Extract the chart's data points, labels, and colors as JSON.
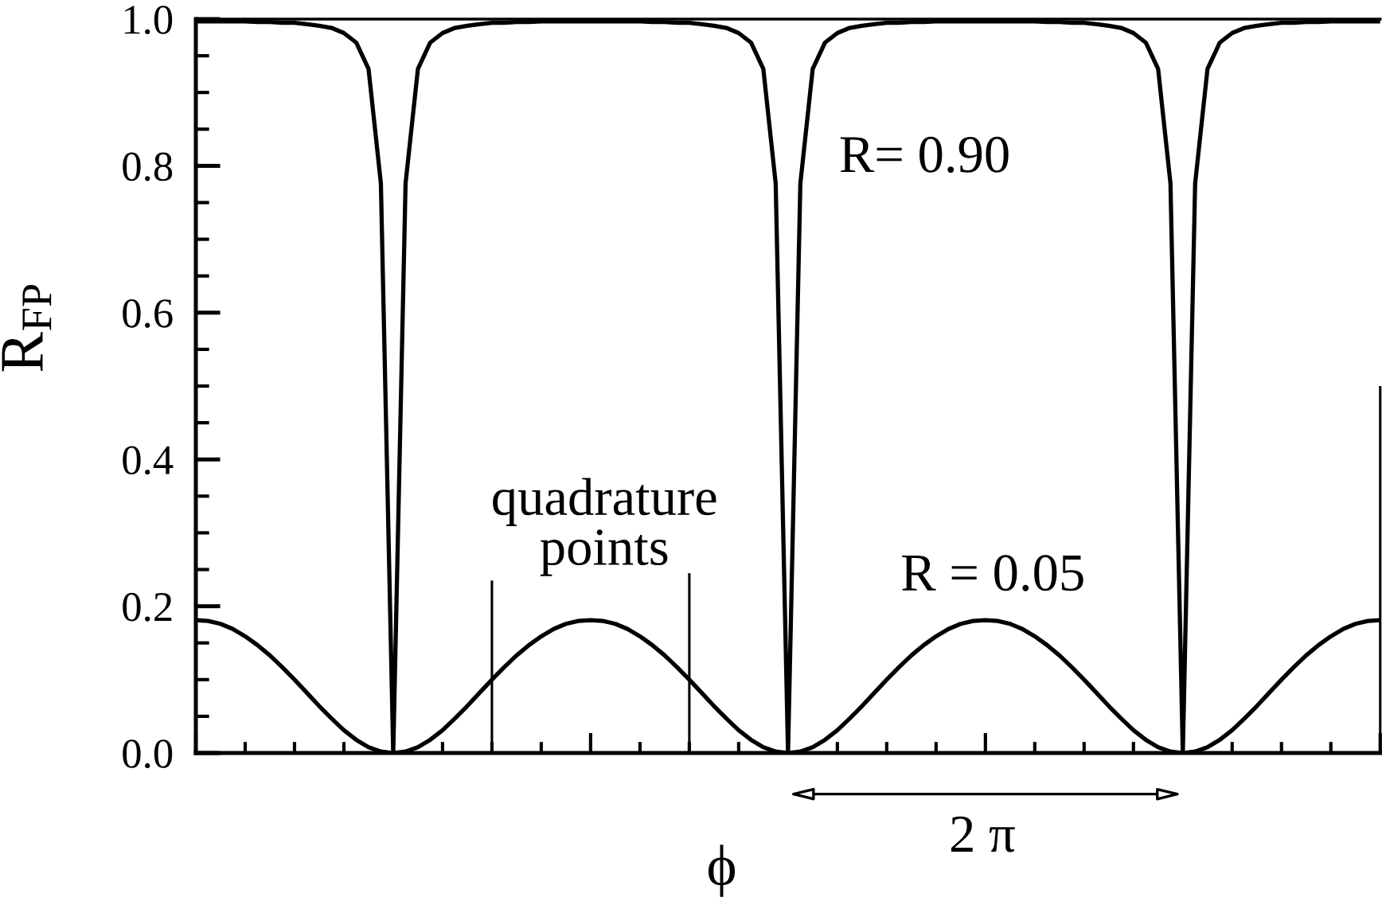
{
  "chart_data": {
    "type": "line",
    "xlabel": "ϕ",
    "ylabel": "R$_{FP}$",
    "categories": [
      null,
      null,
      null,
      null,
      null,
      null,
      null,
      null,
      null,
      null,
      null,
      null,
      null,
      null,
      null,
      null,
      null,
      null,
      null,
      null,
      null,
      null,
      null,
      null,
      null,
      null,
      null,
      null,
      null,
      null,
      null,
      null,
      null,
      null,
      null,
      null,
      null,
      null,
      null,
      null,
      null,
      null,
      null,
      null,
      null,
      null,
      null,
      null,
      null,
      null,
      null,
      null,
      null,
      null,
      null,
      null,
      null,
      null,
      null,
      null,
      null,
      null,
      null,
      null,
      null,
      null,
      null,
      null,
      null,
      null,
      null,
      null,
      null,
      null,
      null,
      null,
      null,
      null,
      null,
      null,
      null,
      null,
      null,
      null,
      null,
      null,
      null,
      null,
      null,
      null,
      null,
      null,
      null,
      null,
      null,
      null,
      null
    ],
    "series": [
      {
        "name": "R= 0.90",
        "color": "#000000",
        "values": [
          0.997,
          0.997,
          0.997,
          0.997,
          0.997,
          0.996,
          0.996,
          0.995,
          0.995,
          0.993,
          0.991,
          0.988,
          0.981,
          0.968,
          0.932,
          0.776,
          0,
          0.776,
          0.932,
          0.968,
          0.981,
          0.988,
          0.991,
          0.993,
          0.995,
          0.995,
          0.996,
          0.996,
          0.997,
          0.997,
          0.997,
          0.997,
          0.997,
          0.997,
          0.997,
          0.997,
          0.997,
          0.996,
          0.996,
          0.995,
          0.995,
          0.993,
          0.991,
          0.988,
          0.981,
          0.968,
          0.932,
          0.776,
          0,
          0.776,
          0.932,
          0.968,
          0.981,
          0.988,
          0.991,
          0.993,
          0.995,
          0.995,
          0.996,
          0.996,
          0.997,
          0.997,
          0.997,
          0.997,
          0.997,
          0.997,
          0.997,
          0.997,
          0.997,
          0.996,
          0.996,
          0.995,
          0.995,
          0.993,
          0.991,
          0.988,
          0.981,
          0.968,
          0.932,
          0.776,
          0,
          0.776,
          0.932,
          0.968,
          0.981,
          0.988,
          0.991,
          0.993,
          0.995,
          0.995,
          0.996,
          0.996,
          0.997,
          0.997,
          0.997,
          0.997,
          0.997
        ]
      },
      {
        "name": "R = 0.05",
        "color": "#000000",
        "values": [
          0.181,
          0.18,
          0.176,
          0.169,
          0.159,
          0.147,
          0.133,
          0.117,
          0.1,
          0.082,
          0.064,
          0.047,
          0.031,
          0.018,
          0.008,
          0.002,
          0,
          0.002,
          0.008,
          0.018,
          0.031,
          0.047,
          0.064,
          0.082,
          0.1,
          0.117,
          0.133,
          0.147,
          0.159,
          0.169,
          0.176,
          0.18,
          0.181,
          0.18,
          0.176,
          0.169,
          0.159,
          0.147,
          0.133,
          0.117,
          0.1,
          0.082,
          0.064,
          0.047,
          0.031,
          0.018,
          0.008,
          0.002,
          0,
          0.002,
          0.008,
          0.018,
          0.031,
          0.047,
          0.064,
          0.082,
          0.1,
          0.117,
          0.133,
          0.147,
          0.159,
          0.169,
          0.176,
          0.18,
          0.181,
          0.18,
          0.176,
          0.169,
          0.159,
          0.147,
          0.133,
          0.117,
          0.1,
          0.082,
          0.064,
          0.047,
          0.031,
          0.018,
          0.008,
          0.002,
          0,
          0.002,
          0.008,
          0.018,
          0.031,
          0.047,
          0.064,
          0.082,
          0.1,
          0.117,
          0.133,
          0.147,
          0.159,
          0.169,
          0.176,
          0.18,
          0.181
        ]
      },
      {
        "type": "bar",
        "color": "#000000",
        "values": [
          null,
          null,
          null,
          null,
          null,
          null,
          null,
          null,
          null,
          null,
          null,
          null,
          null,
          null,
          null,
          null,
          null,
          null,
          null,
          null,
          null,
          null,
          null,
          null,
          0.235,
          null,
          null,
          null,
          null,
          null,
          null,
          null,
          null,
          null,
          null,
          null,
          null,
          null,
          null,
          null,
          0.245,
          null,
          null,
          null,
          null,
          null,
          null,
          null,
          null,
          null,
          null,
          null,
          null,
          null,
          null,
          null,
          null,
          null,
          null,
          null,
          null,
          null,
          null,
          null,
          null,
          null,
          null,
          null,
          null,
          null,
          null,
          null,
          null,
          null,
          null,
          null,
          null,
          null,
          null,
          null,
          null,
          null,
          null,
          null,
          null,
          null,
          null,
          null,
          null,
          null,
          null,
          null,
          null,
          null,
          null,
          null,
          0.5
        ]
      }
    ],
    "ylim": [
      0,
      1
    ],
    "yticks": [
      {
        "value": 0,
        "label": "0.0"
      },
      {
        "value": 0.05,
        "label": null
      },
      {
        "value": 0.1,
        "label": null
      },
      {
        "value": 0.15,
        "label": null
      },
      0.2,
      {
        "value": 0.25,
        "label": null
      },
      {
        "value": 0.3,
        "label": null
      },
      {
        "value": 0.35,
        "label": null
      },
      0.4,
      {
        "value": 0.45,
        "label": null
      },
      {
        "value": 0.5,
        "label": null
      },
      {
        "value": 0.55,
        "label": null
      },
      0.6,
      {
        "value": 0.65,
        "label": null
      },
      {
        "value": 0.7,
        "label": null
      },
      {
        "value": 0.75,
        "label": null
      },
      0.8,
      {
        "value": 0.85,
        "label": null
      },
      {
        "value": 0.9,
        "label": null
      },
      {
        "value": 0.95,
        "label": null
      },
      {
        "value": 1,
        "label": "1.0"
      }
    ],
    "annotations": [
      "quadrature\npoints",
      "2 π"
    ]
  }
}
